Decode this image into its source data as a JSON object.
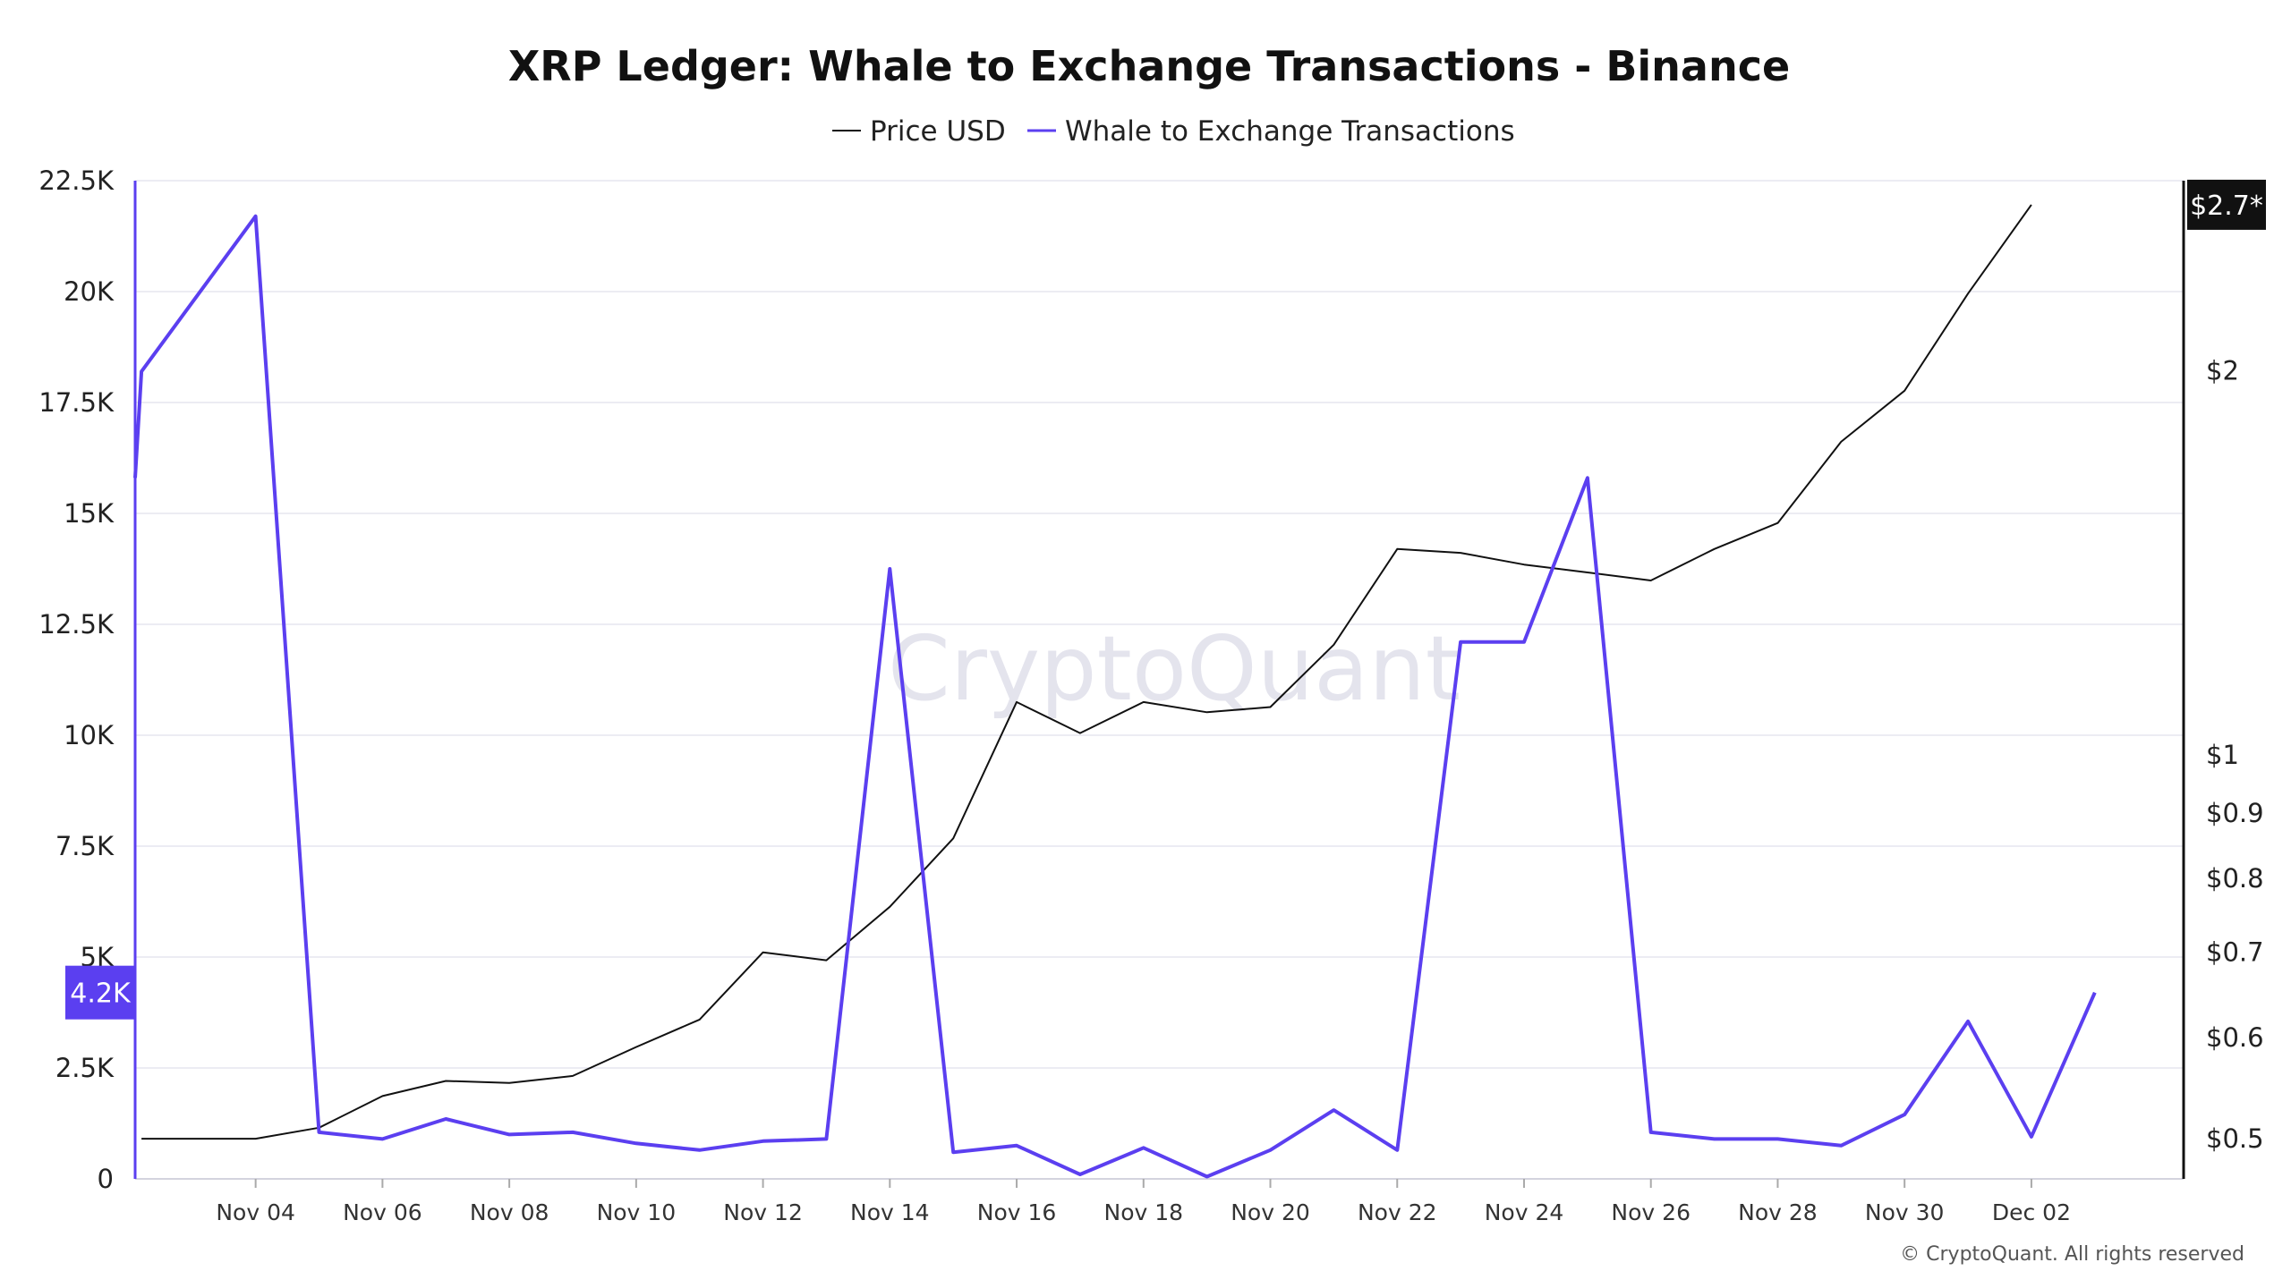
{
  "title": "XRP Ledger: Whale to Exchange Transactions - Binance",
  "watermark": "CryptoQuant",
  "copyright": "© CryptoQuant. All rights reserved",
  "colors": {
    "price": "#111111",
    "whale": "#5b3ff0",
    "grid": "#ececf3",
    "price_badge_bg": "#111111",
    "whale_badge_bg": "#5b3ff0"
  },
  "chart_data": {
    "type": "line",
    "title": "XRP Ledger: Whale to Exchange Transactions - Binance",
    "legend": {
      "placement": "top-center",
      "entries": [
        "Price USD",
        "Whale to Exchange Transactions"
      ]
    },
    "grid": true,
    "x_ticks": [
      "Nov 04",
      "Nov 06",
      "Nov 08",
      "Nov 10",
      "Nov 12",
      "Nov 14",
      "Nov 16",
      "Nov 18",
      "Nov 20",
      "Nov 22",
      "Nov 24",
      "Nov 26",
      "Nov 28",
      "Nov 30",
      "Dec 02"
    ],
    "x_range": [
      2.1,
      34.4
    ],
    "y_left": {
      "label": "",
      "scale": "linear",
      "range": [
        0,
        22500
      ],
      "ticks": [
        0,
        2500,
        5000,
        7500,
        10000,
        12500,
        15000,
        17500,
        20000,
        22500
      ],
      "tick_labels": [
        "0",
        "2.5K",
        "5K",
        "7.5K",
        "10K",
        "12.5K",
        "15K",
        "17.5K",
        "20K",
        "22.5K"
      ]
    },
    "y_right": {
      "label": "",
      "scale": "log",
      "range": [
        0.465,
        2.82
      ],
      "ticks": [
        0.5,
        0.6,
        0.7,
        0.8,
        0.9,
        1,
        2
      ],
      "tick_labels": [
        "$0.5",
        "$0.6",
        "$0.7",
        "$0.8",
        "$0.9",
        "$1",
        "$2"
      ]
    },
    "series": [
      {
        "name": "Price USD",
        "axis": "right",
        "x": [
          2.2,
          3,
          4,
          5,
          6,
          7,
          8,
          9,
          10,
          11,
          12,
          13,
          14,
          15,
          16,
          17,
          18,
          19,
          20,
          21,
          22,
          23,
          24,
          25,
          26,
          27,
          28,
          29,
          30,
          31,
          32
        ],
        "values": [
          0.5,
          0.5,
          0.5,
          0.51,
          0.54,
          0.555,
          0.553,
          0.56,
          0.59,
          0.62,
          0.7,
          0.69,
          0.76,
          0.86,
          1.1,
          1.04,
          1.1,
          1.08,
          1.09,
          1.22,
          1.45,
          1.44,
          1.41,
          1.39,
          1.37,
          1.45,
          1.52,
          1.76,
          1.93,
          2.3,
          2.7
        ]
      },
      {
        "name": "Whale to Exchange Transactions",
        "axis": "left",
        "x": [
          2.1,
          2.2,
          4,
          5,
          6,
          7,
          8,
          9,
          10,
          11,
          12,
          13,
          14,
          15,
          16,
          17,
          18,
          19,
          20,
          21,
          22,
          23,
          24,
          25,
          26,
          27,
          28,
          29,
          30,
          31,
          32,
          33
        ],
        "values": [
          15800,
          18200,
          21700,
          1050,
          900,
          1350,
          1000,
          1050,
          800,
          650,
          850,
          900,
          13750,
          600,
          750,
          100,
          700,
          50,
          650,
          1550,
          650,
          12100,
          12100,
          15800,
          1050,
          900,
          900,
          750,
          1450,
          3550,
          950,
          4200
        ]
      }
    ],
    "last_value_labels": {
      "price": "$2.7*",
      "whale": "4.2K"
    }
  }
}
